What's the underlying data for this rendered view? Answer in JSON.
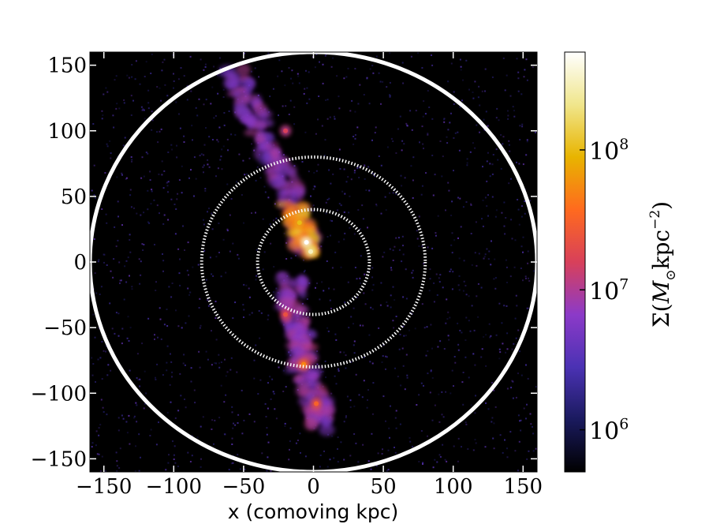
{
  "chart_data": {
    "type": "heatmap",
    "title": "",
    "xlabel": "x (comoving kpc)",
    "ylabel": "",
    "xlim": [
      -160,
      160
    ],
    "ylim": [
      -160,
      160
    ],
    "xticks": [
      -150,
      -100,
      -50,
      0,
      50,
      100,
      150
    ],
    "yticks": [
      -150,
      -100,
      -50,
      0,
      50,
      100,
      150
    ],
    "x_tick_labels": [
      "−150",
      "−100",
      "−50",
      "0",
      "50",
      "100",
      "150"
    ],
    "y_tick_labels": [
      "−150",
      "−100",
      "−50",
      "0",
      "50",
      "100",
      "150"
    ],
    "background_color": "#000000",
    "colormap": "CMRmap",
    "colorbar": {
      "label": "Σ(M⊙kpc⁻²)",
      "label_main": "Σ(",
      "label_M": "M",
      "label_sun": "⊙",
      "label_unit": "kpc",
      "label_exp": "−2",
      "label_close": ")",
      "scale": "log",
      "range": [
        500000,
        500000000
      ],
      "ticks": [
        1000000,
        10000000,
        100000000
      ],
      "tick_bases": [
        "10",
        "10",
        "10"
      ],
      "tick_exponents": [
        "6",
        "7",
        "8"
      ],
      "stops": [
        "#000000",
        "#1a1a5e",
        "#4b32b4",
        "#8c3ac8",
        "#d8405a",
        "#ff6a1e",
        "#e8b400",
        "#f0e68c",
        "#ffffff"
      ]
    },
    "circles": [
      {
        "name": "outer-radius",
        "center": [
          0,
          0
        ],
        "radius": 160,
        "style": "solid",
        "color": "#ffffff"
      },
      {
        "name": "half-radius",
        "center": [
          0,
          0
        ],
        "radius": 80,
        "style": "dotted",
        "color": "#ffffff"
      },
      {
        "name": "quarter-radius",
        "center": [
          0,
          0
        ],
        "radius": 40,
        "style": "dotted",
        "color": "#ffffff"
      }
    ],
    "structures": [
      {
        "name": "upper-filament",
        "path": [
          [
            -55,
            145
          ],
          [
            -45,
            115
          ],
          [
            -30,
            85
          ],
          [
            -18,
            55
          ],
          [
            -8,
            25
          ],
          [
            -4,
            8
          ]
        ],
        "level": 0.4
      },
      {
        "name": "central-core",
        "path": [
          [
            -15,
            45
          ],
          [
            -8,
            25
          ],
          [
            -4,
            8
          ]
        ],
        "level": 0.75
      },
      {
        "name": "lower-filament",
        "path": [
          [
            -15,
            -15
          ],
          [
            -14,
            -40
          ],
          [
            -8,
            -60
          ],
          [
            -8,
            -80
          ],
          [
            3,
            -110
          ],
          [
            3,
            -125
          ]
        ],
        "level": 0.42
      }
    ],
    "hotspots": [
      {
        "x": -5,
        "y": 15,
        "level": 0.95
      },
      {
        "x": -2,
        "y": 8,
        "level": 0.88
      },
      {
        "x": -10,
        "y": 30,
        "level": 0.72
      },
      {
        "x": -7,
        "y": -78,
        "level": 0.62
      },
      {
        "x": 2,
        "y": -108,
        "level": 0.55
      },
      {
        "x": -20,
        "y": -40,
        "level": 0.5
      },
      {
        "x": -20,
        "y": 100,
        "level": 0.45
      }
    ]
  }
}
